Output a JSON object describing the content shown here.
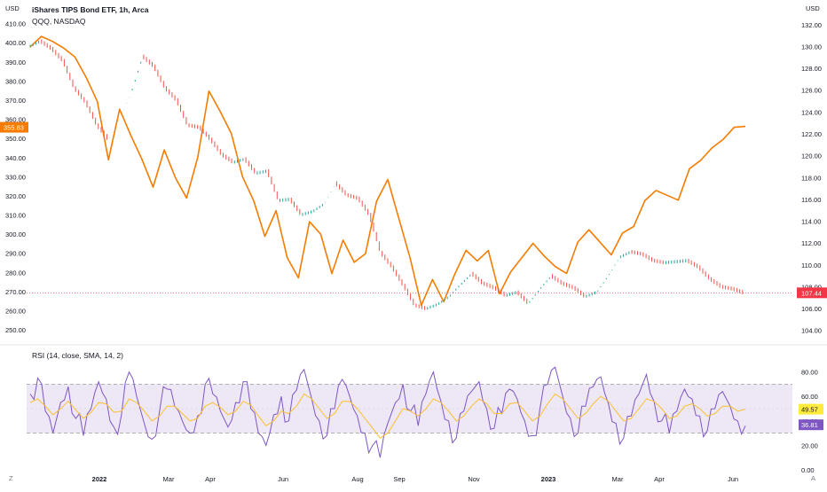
{
  "header": {
    "title": "iShares TIPS Bond ETF, 1h, Arca",
    "compare": "QQQ, NASDAQ",
    "unit_left": "USD",
    "unit_right": "USD"
  },
  "corner": {
    "left": "Z",
    "right": "A"
  },
  "colors": {
    "primary_line": "#f57c00",
    "candle_up": "#26a69a",
    "candle_down": "#ef5350",
    "rsi_line": "#7e57c2",
    "rsi_ma": "#fbc02d",
    "rsi_band": "#ede7f6",
    "rsi_band_border": "#9e9e9e",
    "price_tag_left": "#f57c00",
    "price_tag_right": "#f23645",
    "rsi_tag": "#7e57c2",
    "rsi_ma_tag": "#ffeb3b"
  },
  "chart_data": [
    {
      "type": "line",
      "title": "iShares TIPS Bond ETF, 1h, Arca",
      "x_ticks": [
        "2022",
        "Mar",
        "Apr",
        "Jun",
        "Aug",
        "Sep",
        "Nov",
        "2023",
        "Mar",
        "Apr",
        "Jun"
      ],
      "left_axis": {
        "ticks": [
          "410.00",
          "400.00",
          "390.00",
          "380.00",
          "370.00",
          "360.00",
          "350.00",
          "340.00",
          "330.00",
          "320.00",
          "310.00",
          "300.00",
          "290.00",
          "280.00",
          "270.00",
          "260.00",
          "250.00"
        ],
        "range": [
          244,
          414
        ]
      },
      "right_axis": {
        "ticks": [
          "132.00",
          "130.00",
          "128.00",
          "126.00",
          "124.00",
          "122.00",
          "120.00",
          "118.00",
          "116.00",
          "114.00",
          "112.00",
          "110.00",
          "108.00",
          "106.00",
          "104.00"
        ],
        "range": [
          103,
          132.8
        ]
      },
      "last_price_left": "355.83",
      "last_price_right": "107.44",
      "series": [
        {
          "name": "QQQ, NASDAQ",
          "axis": "left",
          "values": [
            397,
            403,
            401,
            398,
            392,
            382,
            370,
            338,
            365,
            352,
            340,
            324,
            344,
            330,
            318,
            340,
            375,
            365,
            352,
            330,
            318,
            298,
            312,
            288,
            278,
            306,
            300,
            280,
            296,
            285,
            290,
            318,
            328,
            308,
            288,
            262,
            276,
            265,
            280,
            291,
            286,
            292,
            268,
            280,
            288,
            296,
            288,
            283,
            280,
            295,
            302,
            296,
            290,
            300,
            304,
            318,
            322,
            320,
            318,
            335,
            338,
            345,
            350,
            355,
            356
          ],
          "style": "line"
        },
        {
          "name": "TIP",
          "axis": "right",
          "values": [
            130.0,
            130.5,
            129.8,
            128.7,
            126.2,
            124.9,
            122.8,
            121.5,
            123.5,
            125.8,
            129.1,
            128.2,
            126.2,
            125.1,
            122.8,
            122.6,
            121.5,
            120.1,
            119.4,
            119.7,
            118.4,
            118.6,
            115.9,
            116.0,
            114.6,
            114.9,
            115.6,
            117.5,
            116.4,
            116.1,
            114.6,
            111.1,
            109.8,
            108.1,
            106.3,
            106.0,
            106.4,
            107.1,
            108.2,
            109.2,
            108.3,
            107.9,
            107.2,
            107.5,
            106.5,
            107.8,
            109.0,
            108.3,
            107.9,
            107.1,
            107.5,
            109.0,
            110.7,
            111.2,
            111.0,
            110.4,
            110.2,
            110.3,
            110.4,
            109.8,
            108.7,
            108.0,
            107.8,
            107.44
          ],
          "style": "candles"
        }
      ]
    },
    {
      "type": "line",
      "title": "RSI (14, close, SMA, 14, 2)",
      "y_ticks": [
        "80.00",
        "60.00",
        "40.00",
        "20.00",
        "0.00"
      ],
      "ylim": [
        0,
        100
      ],
      "bands": [
        30,
        70
      ],
      "last_values": {
        "rsi": "36.81",
        "ma": "49.57"
      },
      "series": [
        {
          "name": "RSI",
          "values": [
            62,
            75,
            48,
            30,
            55,
            68,
            42,
            28,
            50,
            72,
            58,
            35,
            45,
            80,
            60,
            38,
            25,
            48,
            66,
            52,
            40,
            30,
            44,
            70,
            62,
            48,
            35,
            55,
            72,
            50,
            30,
            20,
            45,
            60,
            40,
            65,
            82,
            58,
            40,
            28,
            50,
            74,
            60,
            44,
            30,
            20,
            10,
            38,
            55,
            70,
            48,
            36,
            62,
            80,
            56,
            40,
            26,
            48,
            64,
            72,
            50,
            34,
            46,
            66,
            58,
            40,
            28,
            50,
            70,
            84,
            60,
            42,
            30,
            52,
            68,
            76,
            54,
            38,
            26,
            44,
            62,
            78,
            56,
            40,
            30,
            48,
            66,
            58,
            44,
            32,
            50,
            64,
            52,
            40,
            36
          ]
        },
        {
          "name": "RSI-based MA",
          "values": [
            55,
            58,
            52,
            45,
            50,
            56,
            49,
            42,
            47,
            55,
            54,
            47,
            48,
            58,
            55,
            48,
            40,
            44,
            52,
            52,
            46,
            40,
            42,
            52,
            55,
            51,
            45,
            48,
            56,
            53,
            44,
            36,
            40,
            48,
            46,
            52,
            62,
            58,
            50,
            42,
            46,
            56,
            56,
            50,
            42,
            34,
            26,
            30,
            40,
            50,
            48,
            44,
            50,
            58,
            55,
            48,
            40,
            44,
            52,
            58,
            54,
            46,
            46,
            54,
            55,
            48,
            40,
            44,
            54,
            62,
            58,
            50,
            42,
            46,
            54,
            60,
            56,
            48,
            40,
            42,
            50,
            58,
            56,
            50,
            42,
            44,
            52,
            54,
            50,
            44,
            46,
            52,
            52,
            48,
            49.57
          ]
        }
      ]
    }
  ]
}
